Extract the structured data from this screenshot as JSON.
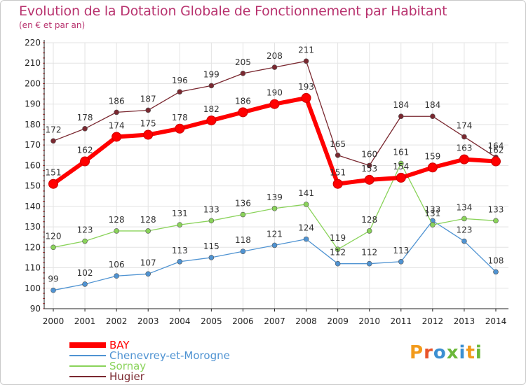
{
  "title": "Evolution de la Dotation Globale de Fonctionnement par Habitant",
  "subtitle": "(en € et par an)",
  "logo": "Proxiti",
  "chart_data": {
    "type": "line",
    "title": "Evolution de la Dotation Globale de Fonctionnement par Habitant",
    "subtitle": "(en € et par an)",
    "xlabel": "",
    "ylabel": "",
    "x": [
      "2000",
      "2001",
      "2002",
      "2003",
      "2004",
      "2005",
      "2006",
      "2007",
      "2008",
      "2009",
      "2010",
      "2011",
      "2012",
      "2013",
      "2014"
    ],
    "ylim": [
      90,
      220
    ],
    "yticks": [
      90,
      100,
      110,
      120,
      130,
      140,
      150,
      160,
      170,
      180,
      190,
      200,
      210,
      220
    ],
    "grid": true,
    "legend_position": "bottom-left",
    "series": [
      {
        "name": "BAY",
        "color": "#ff0000",
        "values": [
          151,
          162,
          174,
          175,
          178,
          182,
          186,
          190,
          193,
          151,
          153,
          154,
          159,
          163,
          162
        ]
      },
      {
        "name": "Chenevrey-et-Morogne",
        "color": "#4f93d2",
        "values": [
          99,
          102,
          106,
          107,
          113,
          115,
          118,
          121,
          124,
          112,
          112,
          113,
          133,
          123,
          108
        ]
      },
      {
        "name": "Sornay",
        "color": "#8ad35a",
        "values": [
          120,
          123,
          128,
          128,
          131,
          133,
          136,
          139,
          141,
          119,
          128,
          161,
          131,
          134,
          133
        ]
      },
      {
        "name": "Hugier",
        "color": "#7a2830",
        "values": [
          172,
          178,
          186,
          187,
          196,
          199,
          205,
          208,
          211,
          165,
          160,
          184,
          184,
          174,
          164
        ]
      }
    ]
  }
}
